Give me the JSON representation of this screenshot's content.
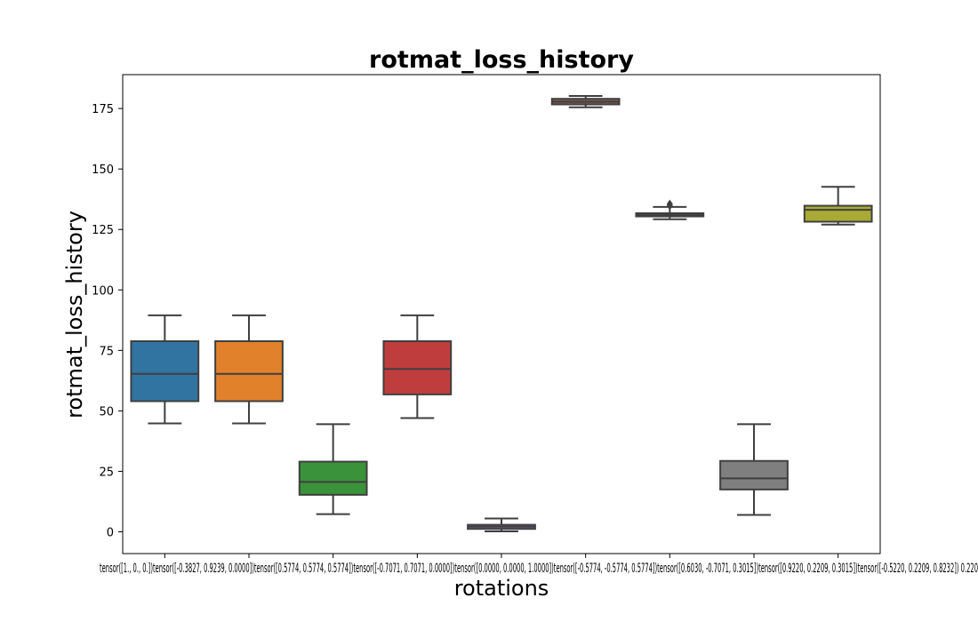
{
  "chart_data": {
    "type": "box",
    "title": "rotmat_loss_history",
    "xlabel": "rotations",
    "ylabel": "rotmat_loss_history",
    "ylim": [
      -9,
      189
    ],
    "yticks": [
      0,
      25,
      50,
      75,
      100,
      125,
      150,
      175
    ],
    "grid": false,
    "legend": "none",
    "categories": [
      "tensor([1., 0., 0.])",
      "tensor([-0.3827, 0.9239, 0.0000])",
      "tensor([0.5774, 0.5774, 0.5774])",
      "tensor([-0.7071, 0.7071, 0.0000])",
      "tensor([0.0000, 0.0000, 1.0000])",
      "tensor([-0.5774, -0.5774, 0.5774])",
      "tensor([0.6030, -0.7071, 0.3015])",
      "tensor([0.9220, 0.2209, 0.3015])",
      "tensor([-0.5220, 0.2209, 0.8232])"
    ],
    "tick_label_text": "tensor([1., 0., 0.])tensor([-0.3827, 0.9239, 0.0000])tensor([0.5774, 0.5774, 0.5774])tensor([-0.7071, 0.7071, 0.0000])tensor([0.0000, 0.0000, 1.0000])tensor([-0.5774, -0.5774, 0.5774])tensor([0.6030, -0.7071, 0.3015])tensor([0.9220, 0.2209, 0.3015])tensor([-0.5220, 0.2209, 0.8232]) 0.220",
    "boxes": [
      {
        "color": "#3274a1",
        "whislo": 44.8,
        "q1": 54,
        "med": 65.3,
        "q3": 78.8,
        "whishi": 89.5,
        "fliers": []
      },
      {
        "color": "#e1812c",
        "whislo": 44.8,
        "q1": 54,
        "med": 65.3,
        "q3": 78.8,
        "whishi": 89.5,
        "fliers": []
      },
      {
        "color": "#3a923a",
        "whislo": 7.3,
        "q1": 15.3,
        "med": 20.6,
        "q3": 29,
        "whishi": 44.5,
        "fliers": []
      },
      {
        "color": "#c03d3e",
        "whislo": 47,
        "q1": 56.8,
        "med": 67.3,
        "q3": 78.8,
        "whishi": 89.5,
        "fliers": []
      },
      {
        "color": "#9372b2",
        "whislo": 0.2,
        "q1": 1.2,
        "med": 2.1,
        "q3": 2.9,
        "whishi": 5.5,
        "fliers": []
      },
      {
        "color": "#845b53",
        "whislo": 175.5,
        "q1": 176.7,
        "med": 177.8,
        "q3": 179,
        "whishi": 180.2,
        "fliers": []
      },
      {
        "color": "#d684bd",
        "whislo": 129.2,
        "q1": 130.4,
        "med": 131.1,
        "q3": 131.7,
        "whishi": 134.3,
        "fliers": [
          135.5,
          134.8
        ]
      },
      {
        "color": "#7f7f7f",
        "whislo": 7,
        "q1": 17.5,
        "med": 22.1,
        "q3": 29.3,
        "whishi": 44.5,
        "fliers": []
      },
      {
        "color": "#a9aa35",
        "whislo": 127,
        "q1": 128.2,
        "med": 133.1,
        "q3": 134.8,
        "whishi": 142.6,
        "fliers": []
      }
    ]
  }
}
